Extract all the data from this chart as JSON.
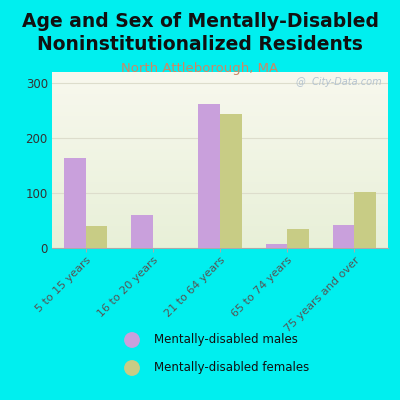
{
  "title": "Age and Sex of Mentally-Disabled\nNoninstitutionalized Residents",
  "subtitle": "North Attleborough, MA",
  "categories": [
    "5 to 15 years",
    "16 to 20 years",
    "21 to 64 years",
    "65 to 74 years",
    "75 years and over"
  ],
  "males": [
    163,
    60,
    261,
    8,
    42
  ],
  "females": [
    40,
    0,
    243,
    35,
    101
  ],
  "male_color": "#c9a0dc",
  "female_color": "#c8cc85",
  "background_color": "#00efef",
  "ylim": [
    0,
    320
  ],
  "yticks": [
    0,
    100,
    200,
    300
  ],
  "title_fontsize": 13.5,
  "subtitle_fontsize": 9.5,
  "subtitle_color": "#cc8866",
  "watermark": "@  City-Data.com",
  "legend_label_males": "Mentally-disabled males",
  "legend_label_females": "Mentally-disabled females"
}
